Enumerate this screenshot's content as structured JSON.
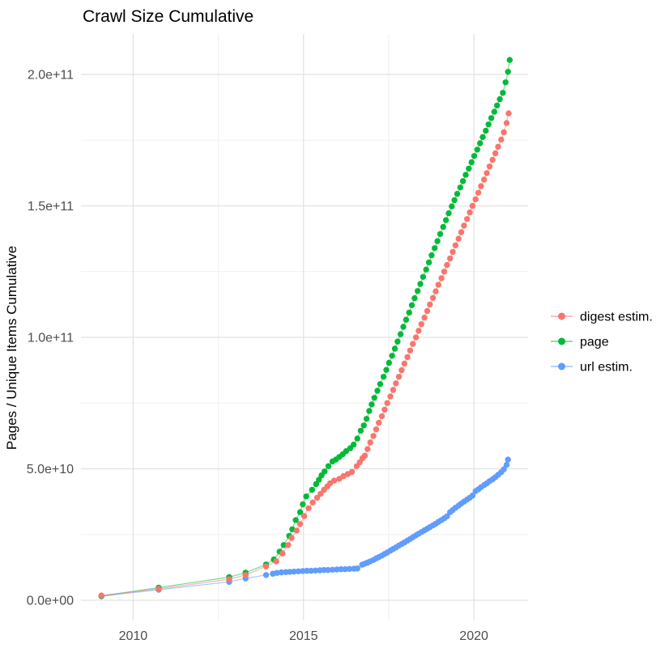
{
  "chart_data": {
    "type": "scatter",
    "title": "Crawl Size Cumulative",
    "xlabel": "",
    "ylabel": "Pages / Unique Items Cumulative",
    "value_unit": "points stored as [year, billions_of_items] (1 billion = 1e9)",
    "x_axis": {
      "tick_labels": [
        "2010",
        "2015",
        "2020"
      ],
      "tick_years": [
        2010,
        2015,
        2020
      ],
      "minor_years": [
        2012.5,
        2017.5
      ],
      "range_years": [
        2008.47,
        2021.59
      ]
    },
    "y_axis": {
      "tick_labels": [
        "0.0e+00",
        "5.0e+10",
        "1.0e+11",
        "1.5e+11",
        "2.0e+11"
      ],
      "tick_values_billions": [
        0,
        50,
        100,
        150,
        200
      ],
      "minor_values_billions": [
        25,
        75,
        125,
        175
      ],
      "range_billions": [
        -8.6,
        215.4
      ]
    },
    "grid": {
      "major_color": "#e2e2e2",
      "minor_color": "#f0f0f0",
      "background": "#ffffff"
    },
    "text_colors": {
      "title": "#000000",
      "axis_title": "#000000",
      "tick_label": "#4d4d4d",
      "legend_label": "#000000"
    },
    "legend": {
      "position": "right",
      "entries": [
        {
          "label": "digest estim.",
          "color": "#F8766D"
        },
        {
          "label": "page",
          "color": "#00BA38"
        },
        {
          "label": "url estim.",
          "color": "#619CFF"
        }
      ]
    },
    "series": [
      {
        "name": "url estim.",
        "color": "#619CFF",
        "points": [
          [
            2009.07,
            1.5
          ],
          [
            2010.75,
            4.0
          ],
          [
            2012.82,
            7.0
          ],
          [
            2013.3,
            8.3
          ],
          [
            2013.9,
            9.6
          ],
          [
            2014.1,
            10.1
          ],
          [
            2014.22,
            10.4
          ],
          [
            2014.35,
            10.6
          ],
          [
            2014.48,
            10.7
          ],
          [
            2014.6,
            10.8
          ],
          [
            2014.72,
            10.9
          ],
          [
            2014.85,
            11.0
          ],
          [
            2014.98,
            11.1
          ],
          [
            2015.1,
            11.2
          ],
          [
            2015.22,
            11.2
          ],
          [
            2015.35,
            11.3
          ],
          [
            2015.48,
            11.4
          ],
          [
            2015.6,
            11.5
          ],
          [
            2015.72,
            11.5
          ],
          [
            2015.85,
            11.6
          ],
          [
            2015.98,
            11.7
          ],
          [
            2016.1,
            11.8
          ],
          [
            2016.22,
            11.8
          ],
          [
            2016.35,
            11.9
          ],
          [
            2016.48,
            12.0
          ],
          [
            2016.58,
            12.1
          ],
          [
            2016.72,
            13.5
          ],
          [
            2016.8,
            13.9
          ],
          [
            2016.88,
            14.3
          ],
          [
            2016.96,
            14.8
          ],
          [
            2017.05,
            15.3
          ],
          [
            2017.13,
            15.9
          ],
          [
            2017.21,
            16.4
          ],
          [
            2017.3,
            17.0
          ],
          [
            2017.38,
            17.6
          ],
          [
            2017.46,
            18.2
          ],
          [
            2017.55,
            18.9
          ],
          [
            2017.63,
            19.5
          ],
          [
            2017.71,
            20.1
          ],
          [
            2017.8,
            20.8
          ],
          [
            2017.88,
            21.4
          ],
          [
            2017.96,
            22.0
          ],
          [
            2018.05,
            22.7
          ],
          [
            2018.13,
            23.3
          ],
          [
            2018.21,
            24.0
          ],
          [
            2018.3,
            24.7
          ],
          [
            2018.38,
            25.3
          ],
          [
            2018.46,
            25.9
          ],
          [
            2018.55,
            26.6
          ],
          [
            2018.63,
            27.2
          ],
          [
            2018.71,
            27.8
          ],
          [
            2018.8,
            28.5
          ],
          [
            2018.88,
            29.1
          ],
          [
            2018.96,
            29.8
          ],
          [
            2019.05,
            30.5
          ],
          [
            2019.13,
            31.2
          ],
          [
            2019.21,
            31.9
          ],
          [
            2019.3,
            33.5
          ],
          [
            2019.38,
            34.3
          ],
          [
            2019.46,
            35.2
          ],
          [
            2019.55,
            36.0
          ],
          [
            2019.63,
            36.8
          ],
          [
            2019.71,
            37.5
          ],
          [
            2019.8,
            38.3
          ],
          [
            2019.88,
            39.0
          ],
          [
            2019.96,
            39.8
          ],
          [
            2020.05,
            41.5
          ],
          [
            2020.13,
            42.2
          ],
          [
            2020.21,
            43.0
          ],
          [
            2020.3,
            43.8
          ],
          [
            2020.38,
            44.5
          ],
          [
            2020.46,
            45.3
          ],
          [
            2020.55,
            46.0
          ],
          [
            2020.63,
            46.8
          ],
          [
            2020.71,
            47.7
          ],
          [
            2020.8,
            48.7
          ],
          [
            2020.88,
            49.8
          ],
          [
            2020.96,
            51.5
          ],
          [
            2021.0,
            53.5
          ]
        ]
      },
      {
        "name": "page",
        "color": "#00BA38",
        "points": [
          [
            2009.07,
            1.6
          ],
          [
            2010.75,
            4.8
          ],
          [
            2012.82,
            8.8
          ],
          [
            2013.3,
            10.5
          ],
          [
            2013.9,
            13.6
          ],
          [
            2014.13,
            15.5
          ],
          [
            2014.3,
            18.5
          ],
          [
            2014.42,
            21.0
          ],
          [
            2014.58,
            24.5
          ],
          [
            2014.67,
            27.0
          ],
          [
            2014.77,
            30.5
          ],
          [
            2014.9,
            33.5
          ],
          [
            2014.98,
            36.5
          ],
          [
            2015.08,
            39.5
          ],
          [
            2015.25,
            42.0
          ],
          [
            2015.37,
            44.2
          ],
          [
            2015.45,
            45.8
          ],
          [
            2015.53,
            47.5
          ],
          [
            2015.62,
            49.0
          ],
          [
            2015.73,
            51.0
          ],
          [
            2015.85,
            52.8
          ],
          [
            2015.95,
            53.5
          ],
          [
            2016.05,
            54.5
          ],
          [
            2016.15,
            55.5
          ],
          [
            2016.25,
            56.7
          ],
          [
            2016.37,
            57.8
          ],
          [
            2016.47,
            59.2
          ],
          [
            2016.58,
            61.5
          ],
          [
            2016.68,
            64.5
          ],
          [
            2016.77,
            66.5
          ],
          [
            2016.85,
            69.0
          ],
          [
            2016.93,
            72.0
          ],
          [
            2017.0,
            74.5
          ],
          [
            2017.08,
            77.0
          ],
          [
            2017.17,
            79.7
          ],
          [
            2017.25,
            82.2
          ],
          [
            2017.35,
            85.0
          ],
          [
            2017.43,
            87.6
          ],
          [
            2017.51,
            90.3
          ],
          [
            2017.6,
            93.0
          ],
          [
            2017.68,
            95.7
          ],
          [
            2017.76,
            98.4
          ],
          [
            2017.85,
            101.2
          ],
          [
            2017.93,
            104.0
          ],
          [
            2018.01,
            106.7
          ],
          [
            2018.1,
            109.4
          ],
          [
            2018.18,
            112.2
          ],
          [
            2018.26,
            114.9
          ],
          [
            2018.35,
            117.6
          ],
          [
            2018.43,
            120.3
          ],
          [
            2018.51,
            123.0
          ],
          [
            2018.6,
            125.8
          ],
          [
            2018.68,
            128.5
          ],
          [
            2018.76,
            131.2
          ],
          [
            2018.85,
            133.9
          ],
          [
            2018.93,
            136.6
          ],
          [
            2019.01,
            139.3
          ],
          [
            2019.1,
            142.0
          ],
          [
            2019.18,
            144.6
          ],
          [
            2019.26,
            147.2
          ],
          [
            2019.35,
            149.8
          ],
          [
            2019.43,
            152.2
          ],
          [
            2019.51,
            154.6
          ],
          [
            2019.6,
            157.0
          ],
          [
            2019.68,
            159.4
          ],
          [
            2019.76,
            161.8
          ],
          [
            2019.85,
            164.2
          ],
          [
            2019.93,
            166.6
          ],
          [
            2020.01,
            169.0
          ],
          [
            2020.1,
            171.4
          ],
          [
            2020.18,
            173.8
          ],
          [
            2020.26,
            176.2
          ],
          [
            2020.35,
            178.6
          ],
          [
            2020.43,
            181.0
          ],
          [
            2020.51,
            183.4
          ],
          [
            2020.6,
            185.8
          ],
          [
            2020.68,
            188.2
          ],
          [
            2020.76,
            190.6
          ],
          [
            2020.85,
            193.0
          ],
          [
            2020.93,
            197.0
          ],
          [
            2021.0,
            201.0
          ],
          [
            2021.05,
            205.5
          ]
        ]
      },
      {
        "name": "digest estim.",
        "color": "#F8766D",
        "points": [
          [
            2009.07,
            1.8
          ],
          [
            2010.75,
            4.3
          ],
          [
            2012.82,
            8.0
          ],
          [
            2013.3,
            9.6
          ],
          [
            2013.9,
            12.9
          ],
          [
            2014.2,
            14.8
          ],
          [
            2014.38,
            17.8
          ],
          [
            2014.55,
            21.0
          ],
          [
            2014.65,
            23.7
          ],
          [
            2014.8,
            26.5
          ],
          [
            2014.9,
            29.0
          ],
          [
            2015.02,
            32.0
          ],
          [
            2015.15,
            35.0
          ],
          [
            2015.27,
            37.2
          ],
          [
            2015.4,
            39.0
          ],
          [
            2015.5,
            40.5
          ],
          [
            2015.6,
            42.0
          ],
          [
            2015.7,
            43.3
          ],
          [
            2015.78,
            44.5
          ],
          [
            2015.9,
            45.5
          ],
          [
            2016.05,
            46.2
          ],
          [
            2016.17,
            47.2
          ],
          [
            2016.3,
            48.0
          ],
          [
            2016.42,
            48.8
          ],
          [
            2016.56,
            51.0
          ],
          [
            2016.65,
            52.5
          ],
          [
            2016.73,
            54.0
          ],
          [
            2016.8,
            55.0
          ],
          [
            2016.88,
            57.5
          ],
          [
            2016.96,
            60.0
          ],
          [
            2017.05,
            62.5
          ],
          [
            2017.13,
            65.0
          ],
          [
            2017.21,
            67.5
          ],
          [
            2017.3,
            70.0
          ],
          [
            2017.38,
            72.5
          ],
          [
            2017.46,
            75.0
          ],
          [
            2017.55,
            77.5
          ],
          [
            2017.63,
            80.0
          ],
          [
            2017.71,
            82.5
          ],
          [
            2017.8,
            85.0
          ],
          [
            2017.88,
            87.5
          ],
          [
            2017.96,
            90.0
          ],
          [
            2018.05,
            92.5
          ],
          [
            2018.13,
            95.0
          ],
          [
            2018.21,
            97.5
          ],
          [
            2018.3,
            100.0
          ],
          [
            2018.38,
            102.5
          ],
          [
            2018.46,
            105.0
          ],
          [
            2018.55,
            107.5
          ],
          [
            2018.63,
            110.0
          ],
          [
            2018.71,
            112.5
          ],
          [
            2018.8,
            115.0
          ],
          [
            2018.88,
            117.5
          ],
          [
            2018.96,
            120.0
          ],
          [
            2019.05,
            122.5
          ],
          [
            2019.13,
            125.0
          ],
          [
            2019.21,
            127.5
          ],
          [
            2019.3,
            130.0
          ],
          [
            2019.38,
            132.5
          ],
          [
            2019.46,
            135.0
          ],
          [
            2019.55,
            137.5
          ],
          [
            2019.63,
            140.0
          ],
          [
            2019.71,
            142.5
          ],
          [
            2019.8,
            145.0
          ],
          [
            2019.88,
            147.5
          ],
          [
            2019.96,
            150.0
          ],
          [
            2020.05,
            152.5
          ],
          [
            2020.13,
            155.0
          ],
          [
            2020.21,
            157.5
          ],
          [
            2020.3,
            160.0
          ],
          [
            2020.38,
            162.5
          ],
          [
            2020.46,
            165.0
          ],
          [
            2020.55,
            167.5
          ],
          [
            2020.63,
            170.0
          ],
          [
            2020.71,
            172.5
          ],
          [
            2020.8,
            175.2
          ],
          [
            2020.88,
            178.0
          ],
          [
            2020.96,
            181.5
          ],
          [
            2021.02,
            185.2
          ]
        ]
      }
    ]
  }
}
